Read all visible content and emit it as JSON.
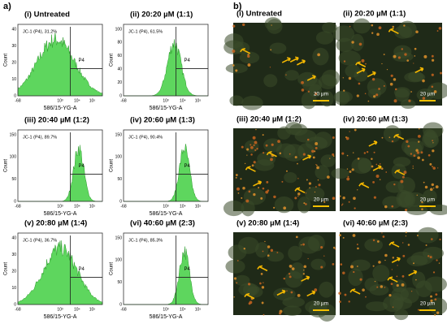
{
  "figure": {
    "panel_a": {
      "label": "a)",
      "plots": [
        {
          "title": "(i) Untreated",
          "gate_label": "JC-1 (P4), 31.2%",
          "gate_name": "P4",
          "x_label": "586/15-YG-A",
          "y_label": "Count",
          "x_ticks": [
            "-68",
            "10³",
            "10⁴",
            "10⁵"
          ],
          "y_ticks": [
            "0",
            "10",
            "20",
            "30",
            "40"
          ]
        },
        {
          "title": "(ii) 20:20 µM (1:1)",
          "gate_label": "JC-1 (P4), 61.5%",
          "gate_name": "P4",
          "x_label": "586/15-YG-A",
          "y_label": "Count",
          "x_ticks": [
            "-68",
            "10³",
            "10⁴",
            "10⁵"
          ],
          "y_ticks": [
            "0",
            "20",
            "40",
            "60",
            "80",
            "100"
          ]
        },
        {
          "title": "(iii) 20:40 µM (1:2)",
          "gate_label": "JC-1 (P4), 89.7%",
          "gate_name": "P4",
          "x_label": "586/15-YG-A",
          "y_label": "Count",
          "x_ticks": [
            "-68",
            "10³",
            "10⁴",
            "10⁵"
          ],
          "y_ticks": [
            "0",
            "50",
            "100",
            "150"
          ]
        },
        {
          "title": "(iv) 20:60 µM (1:3)",
          "gate_label": "JC-1 (P4), 90.4%",
          "gate_name": "P4",
          "x_label": "586/15-YG-A",
          "y_label": "Count",
          "x_ticks": [
            "-68",
            "10³",
            "10⁴",
            "10⁵"
          ],
          "y_ticks": [
            "0",
            "50",
            "100",
            "150"
          ]
        },
        {
          "title": "(v) 20:80 µM (1:4)",
          "gate_label": "JC-1 (P4), 36.7%",
          "gate_name": "P4",
          "x_label": "586/15-YG-A",
          "y_label": "Count",
          "x_ticks": [
            "-68",
            "10³",
            "10⁴",
            "10⁵"
          ],
          "y_ticks": [
            "0",
            "10",
            "20",
            "30",
            "40"
          ]
        },
        {
          "title": "(vi) 40:60 µM (2:3)",
          "gate_label": "JC-1 (P4), 85.3%",
          "gate_name": "P4",
          "x_label": "586/15-YG-A",
          "y_label": "Count",
          "x_ticks": [
            "-68",
            "10³",
            "10⁴",
            "10⁵"
          ],
          "y_ticks": [
            "0",
            "50",
            "100",
            "150"
          ]
        }
      ]
    },
    "panel_b": {
      "label": "b)",
      "images": [
        {
          "title": "(i) Untreated",
          "scale_bar": "20 µm"
        },
        {
          "title": "(ii) 20:20 µM (1:1)",
          "scale_bar": "20 µm"
        },
        {
          "title": "(iii) 20:40 µM (1:2)",
          "scale_bar": "20 µm"
        },
        {
          "title": "(iv) 20:60 µM (1:3)",
          "scale_bar": "20 µm"
        },
        {
          "title": "(v) 20:80 µM (1:4)",
          "scale_bar": "20 µm"
        },
        {
          "title": "(vi) 40:60 µM (2:3)",
          "scale_bar": "20 µm"
        }
      ]
    }
  }
}
